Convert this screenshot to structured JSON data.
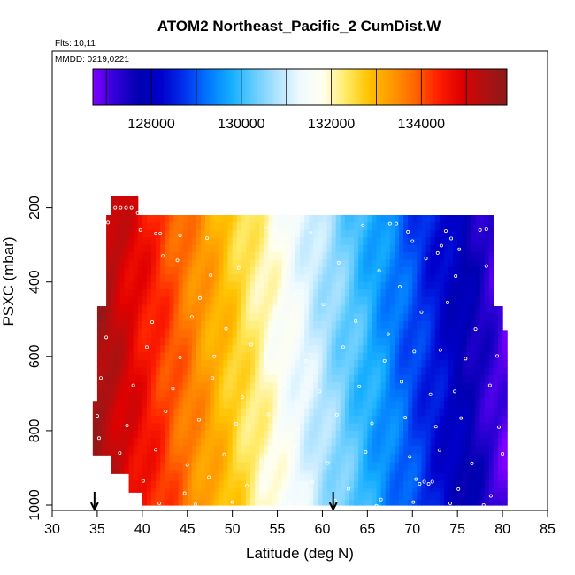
{
  "chart_data": {
    "type": "heatmap",
    "title": "ATOM2 Northeast_Pacific_2 CumDist.W",
    "subtitle": "Flts: 10,11",
    "annotation": "MMDD: 0219,0221",
    "xlabel": "Latitude (deg N)",
    "ylabel": "PSXC (mbar)",
    "xlim": [
      30,
      85
    ],
    "ylim": [
      1000,
      0
    ],
    "y_reversed": true,
    "xticks": [
      30,
      35,
      40,
      45,
      50,
      55,
      60,
      65,
      70,
      75,
      80,
      85
    ],
    "yticks": [
      200,
      400,
      600,
      800,
      1000
    ],
    "colorbar": {
      "min": 126700,
      "max": 135900,
      "ticks": [
        128000,
        130000,
        132000,
        134000
      ],
      "colors": [
        "#7f00ff",
        "#3000d8",
        "#0000b0",
        "#0000cc",
        "#0033ee",
        "#0077ff",
        "#14adff",
        "#64ccff",
        "#b0e3ff",
        "#f0faff",
        "#fffff0",
        "#ffeb66",
        "#ffc300",
        "#ff9900",
        "#ff6600",
        "#ff1f00",
        "#e00000",
        "#b01010",
        "#8e1a1a"
      ]
    },
    "value_model": {
      "lat0": 35,
      "lat1": 80,
      "v0": 135600,
      "v1": 127000
    },
    "coverage": [
      {
        "p_top": 170,
        "p_bot": 200,
        "lat_min": 36.5,
        "lat_max": 39.5
      },
      {
        "p_top": 200,
        "p_bot": 220,
        "lat_min": 36.5,
        "lat_max": 39.5
      },
      {
        "p_top": 220,
        "p_bot": 465,
        "lat_min": 36.0,
        "lat_max": 79.0
      },
      {
        "p_top": 465,
        "p_bot": 530,
        "lat_min": 35.0,
        "lat_max": 80.0
      },
      {
        "p_top": 530,
        "p_bot": 720,
        "lat_min": 35.0,
        "lat_max": 80.5
      },
      {
        "p_top": 720,
        "p_bot": 865,
        "lat_min": 34.5,
        "lat_max": 80.5
      },
      {
        "p_top": 865,
        "p_bot": 915,
        "lat_min": 36.5,
        "lat_max": 80.5
      },
      {
        "p_top": 915,
        "p_bot": 965,
        "lat_min": 38.5,
        "lat_max": 80.5
      },
      {
        "p_top": 965,
        "p_bot": 1000,
        "lat_min": 40.0,
        "lat_max": 80.5
      }
    ],
    "flight_markers_lat": [
      34.7,
      61.2
    ],
    "sample_points": [
      {
        "lat": 37.0,
        "p": 200
      },
      {
        "lat": 37.6,
        "p": 200
      },
      {
        "lat": 38.2,
        "p": 200
      },
      {
        "lat": 38.8,
        "p": 200
      },
      {
        "lat": 35.8,
        "p": 240
      },
      {
        "lat": 36.2,
        "p": 240
      },
      {
        "lat": 39.5,
        "p": 215
      },
      {
        "lat": 41.5,
        "p": 270
      },
      {
        "lat": 42.0,
        "p": 270
      },
      {
        "lat": 39.8,
        "p": 260
      },
      {
        "lat": 44.2,
        "p": 275
      },
      {
        "lat": 47.2,
        "p": 282
      },
      {
        "lat": 53.8,
        "p": 253
      },
      {
        "lat": 55.5,
        "p": 300
      },
      {
        "lat": 58.7,
        "p": 268
      },
      {
        "lat": 64.5,
        "p": 248
      },
      {
        "lat": 67.5,
        "p": 243
      },
      {
        "lat": 68.2,
        "p": 243
      },
      {
        "lat": 69.5,
        "p": 265
      },
      {
        "lat": 70.0,
        "p": 290
      },
      {
        "lat": 74.3,
        "p": 283
      },
      {
        "lat": 73.7,
        "p": 263
      },
      {
        "lat": 77.5,
        "p": 260
      },
      {
        "lat": 78.2,
        "p": 258
      },
      {
        "lat": 75.2,
        "p": 312
      },
      {
        "lat": 72.8,
        "p": 322
      },
      {
        "lat": 73.2,
        "p": 302
      },
      {
        "lat": 42.3,
        "p": 330
      },
      {
        "lat": 43.9,
        "p": 342
      },
      {
        "lat": 47.6,
        "p": 382
      },
      {
        "lat": 50.7,
        "p": 362
      },
      {
        "lat": 57.0,
        "p": 433
      },
      {
        "lat": 61.8,
        "p": 348
      },
      {
        "lat": 66.3,
        "p": 370
      },
      {
        "lat": 68.6,
        "p": 413
      },
      {
        "lat": 71.5,
        "p": 337
      },
      {
        "lat": 74.8,
        "p": 384
      },
      {
        "lat": 78.2,
        "p": 357
      },
      {
        "lat": 46.4,
        "p": 443
      },
      {
        "lat": 41.1,
        "p": 508
      },
      {
        "lat": 45.5,
        "p": 494
      },
      {
        "lat": 49.3,
        "p": 526
      },
      {
        "lat": 54.7,
        "p": 476
      },
      {
        "lat": 60.1,
        "p": 460
      },
      {
        "lat": 63.7,
        "p": 505
      },
      {
        "lat": 67.3,
        "p": 540
      },
      {
        "lat": 71.0,
        "p": 481
      },
      {
        "lat": 73.9,
        "p": 455
      },
      {
        "lat": 77.0,
        "p": 527
      },
      {
        "lat": 36.0,
        "p": 549
      },
      {
        "lat": 40.5,
        "p": 575
      },
      {
        "lat": 44.2,
        "p": 603
      },
      {
        "lat": 48.0,
        "p": 600
      },
      {
        "lat": 52.1,
        "p": 568
      },
      {
        "lat": 58.2,
        "p": 612
      },
      {
        "lat": 62.3,
        "p": 575
      },
      {
        "lat": 66.9,
        "p": 612
      },
      {
        "lat": 70.2,
        "p": 587
      },
      {
        "lat": 73.1,
        "p": 583
      },
      {
        "lat": 75.9,
        "p": 606
      },
      {
        "lat": 79.4,
        "p": 599
      },
      {
        "lat": 35.4,
        "p": 658
      },
      {
        "lat": 39.0,
        "p": 678
      },
      {
        "lat": 43.4,
        "p": 687
      },
      {
        "lat": 47.8,
        "p": 658
      },
      {
        "lat": 51.1,
        "p": 710
      },
      {
        "lat": 55.7,
        "p": 672
      },
      {
        "lat": 59.7,
        "p": 694
      },
      {
        "lat": 64.1,
        "p": 681
      },
      {
        "lat": 68.8,
        "p": 668
      },
      {
        "lat": 72.0,
        "p": 702
      },
      {
        "lat": 74.7,
        "p": 694
      },
      {
        "lat": 78.6,
        "p": 678
      },
      {
        "lat": 35.0,
        "p": 760
      },
      {
        "lat": 38.3,
        "p": 786
      },
      {
        "lat": 42.6,
        "p": 748
      },
      {
        "lat": 46.3,
        "p": 771
      },
      {
        "lat": 50.4,
        "p": 781
      },
      {
        "lat": 54.0,
        "p": 756
      },
      {
        "lat": 57.3,
        "p": 794
      },
      {
        "lat": 61.6,
        "p": 757
      },
      {
        "lat": 65.5,
        "p": 780
      },
      {
        "lat": 69.2,
        "p": 765
      },
      {
        "lat": 72.6,
        "p": 789
      },
      {
        "lat": 75.4,
        "p": 766
      },
      {
        "lat": 79.6,
        "p": 790
      },
      {
        "lat": 35.2,
        "p": 820
      },
      {
        "lat": 37.5,
        "p": 860
      },
      {
        "lat": 41.5,
        "p": 851
      },
      {
        "lat": 45.0,
        "p": 892
      },
      {
        "lat": 49.1,
        "p": 864
      },
      {
        "lat": 53.2,
        "p": 881
      },
      {
        "lat": 56.9,
        "p": 843
      },
      {
        "lat": 60.6,
        "p": 887
      },
      {
        "lat": 64.8,
        "p": 857
      },
      {
        "lat": 69.7,
        "p": 870
      },
      {
        "lat": 73.0,
        "p": 852
      },
      {
        "lat": 76.6,
        "p": 888
      },
      {
        "lat": 80.0,
        "p": 862
      },
      {
        "lat": 40.1,
        "p": 935
      },
      {
        "lat": 44.7,
        "p": 968
      },
      {
        "lat": 47.4,
        "p": 925
      },
      {
        "lat": 51.6,
        "p": 948
      },
      {
        "lat": 55.1,
        "p": 972
      },
      {
        "lat": 58.9,
        "p": 938
      },
      {
        "lat": 62.9,
        "p": 956
      },
      {
        "lat": 66.5,
        "p": 985
      },
      {
        "lat": 70.4,
        "p": 930
      },
      {
        "lat": 70.8,
        "p": 943
      },
      {
        "lat": 71.3,
        "p": 937
      },
      {
        "lat": 71.8,
        "p": 943
      },
      {
        "lat": 72.2,
        "p": 937
      },
      {
        "lat": 75.1,
        "p": 957
      },
      {
        "lat": 78.7,
        "p": 975
      },
      {
        "lat": 41.9,
        "p": 995
      },
      {
        "lat": 45.9,
        "p": 998
      },
      {
        "lat": 50.0,
        "p": 992
      },
      {
        "lat": 56.4,
        "p": 997
      },
      {
        "lat": 61.4,
        "p": 988
      },
      {
        "lat": 66.0,
        "p": 1002
      },
      {
        "lat": 70.1,
        "p": 992
      },
      {
        "lat": 74.2,
        "p": 995
      },
      {
        "lat": 77.9,
        "p": 1000
      }
    ]
  }
}
